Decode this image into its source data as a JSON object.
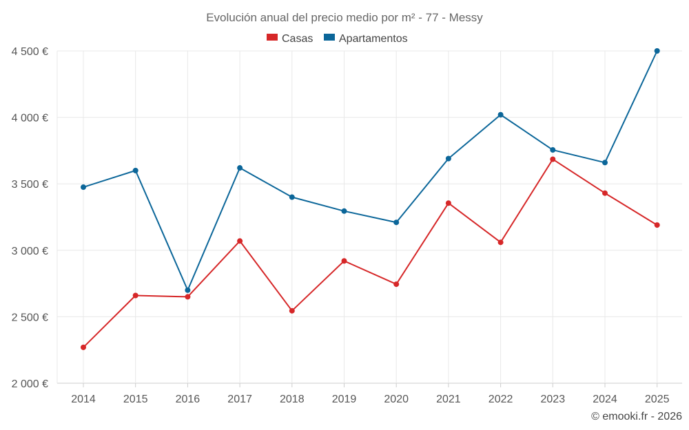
{
  "chart_data": {
    "type": "line",
    "title": "Evolución anual del precio medio por m² - 77 - Messy",
    "categories": [
      "2014",
      "2015",
      "2016",
      "2017",
      "2018",
      "2019",
      "2020",
      "2021",
      "2022",
      "2023",
      "2024",
      "2025"
    ],
    "y_ticks": [
      2000,
      2500,
      3000,
      3500,
      4000,
      4500
    ],
    "y_tick_labels": [
      "2 000 €",
      "2 500 €",
      "3 000 €",
      "3 500 €",
      "4 000 €",
      "4 500 €"
    ],
    "ylim": [
      2000,
      4500
    ],
    "xlabel": "",
    "ylabel": "",
    "grid": true,
    "legend_position": "top-center",
    "series": [
      {
        "name": "Casas",
        "color": "#d62728",
        "values": [
          2270,
          2660,
          2650,
          3070,
          2545,
          2920,
          2745,
          3355,
          3060,
          3685,
          3430,
          3190
        ]
      },
      {
        "name": "Apartamentos",
        "color": "#0b6699",
        "values": [
          3475,
          3600,
          2700,
          3620,
          3400,
          3295,
          3210,
          3690,
          4020,
          3755,
          3660,
          4500
        ]
      }
    ]
  },
  "footer": {
    "copyright": "© emooki.fr - 2026"
  }
}
